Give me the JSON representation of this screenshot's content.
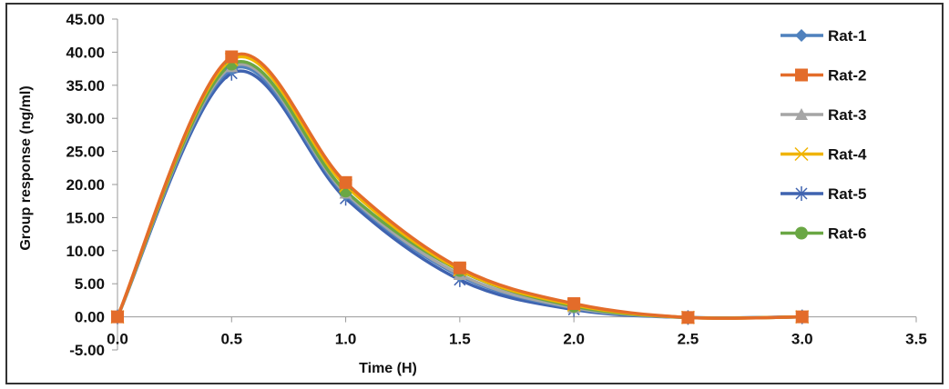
{
  "chart_data": {
    "type": "line",
    "title": "",
    "xlabel": "Time (H)",
    "ylabel": "Group response (ng/ml)",
    "xlim": [
      0,
      3.5
    ],
    "ylim": [
      -5,
      45
    ],
    "x_ticks": [
      "0.0",
      "0.5",
      "1.0",
      "1.5",
      "2.0",
      "2.5",
      "3.0",
      "3.5"
    ],
    "x_tick_values": [
      0,
      0.5,
      1.0,
      1.5,
      2.0,
      2.5,
      3.0,
      3.5
    ],
    "y_ticks": [
      "-5.00",
      "0.00",
      "5.00",
      "10.00",
      "15.00",
      "20.00",
      "25.00",
      "30.00",
      "35.00",
      "40.00",
      "45.00"
    ],
    "y_tick_values": [
      -5,
      0,
      5,
      10,
      15,
      20,
      25,
      30,
      35,
      40,
      45
    ],
    "grid": false,
    "smooth": true,
    "legend_position": "right",
    "x": [
      0,
      0.5,
      1.0,
      1.5,
      2.0,
      2.5,
      3.0
    ],
    "series": [
      {
        "name": "Rat-1",
        "color": "#4f81bd",
        "marker": "diamond",
        "values": [
          0,
          37.4,
          18.4,
          6.2,
          1.3,
          -0.1,
          0.0
        ]
      },
      {
        "name": "Rat-2",
        "color": "#e36c2a",
        "marker": "square",
        "values": [
          0,
          39.3,
          20.3,
          7.4,
          2.0,
          -0.1,
          0.0
        ]
      },
      {
        "name": "Rat-3",
        "color": "#a5a5a5",
        "marker": "triangle",
        "values": [
          0,
          37.8,
          18.7,
          6.4,
          1.4,
          -0.1,
          0.0
        ]
      },
      {
        "name": "Rat-4",
        "color": "#f0b400",
        "marker": "x",
        "values": [
          0,
          38.9,
          19.8,
          7.1,
          1.8,
          -0.1,
          0.0
        ]
      },
      {
        "name": "Rat-5",
        "color": "#3f63b0",
        "marker": "star",
        "values": [
          0,
          36.8,
          17.9,
          5.6,
          1.1,
          -0.1,
          0.0
        ]
      },
      {
        "name": "Rat-6",
        "color": "#6aa744",
        "marker": "circle",
        "values": [
          0,
          38.2,
          19.0,
          7.0,
          1.6,
          -0.1,
          0.0
        ]
      }
    ]
  }
}
